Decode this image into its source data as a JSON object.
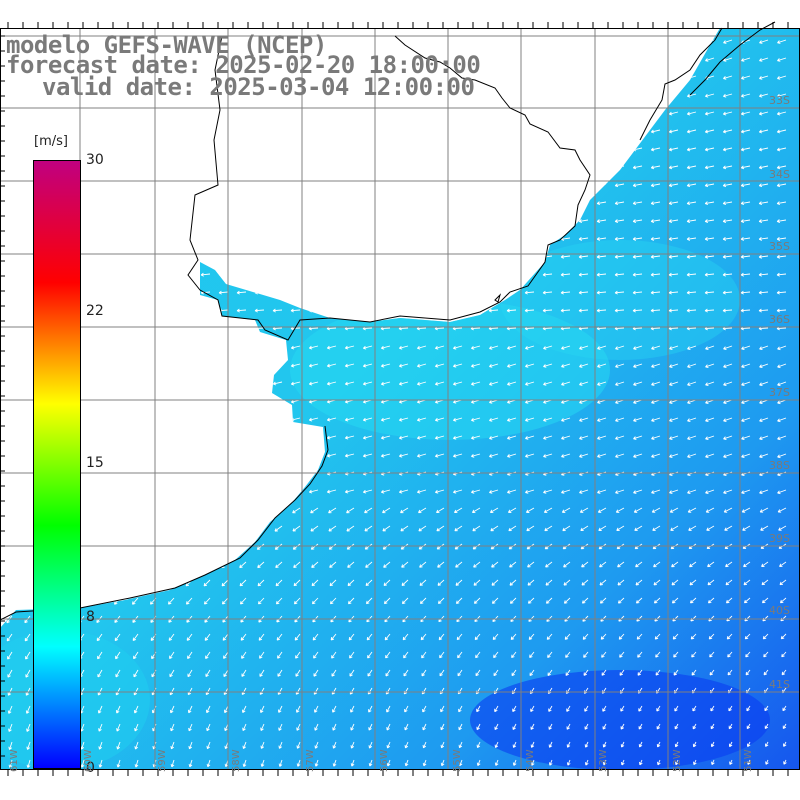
{
  "title": {
    "line1": "modelo GEFS-WAVE (NCEP)",
    "line2": "forecast date: 2025-02-20 18:00:00",
    "line3": "valid date: 2025-03-04 12:00:00"
  },
  "colorbar": {
    "unit": "[m/s]",
    "ticks": [
      "30",
      "22",
      "15",
      "8",
      "0"
    ],
    "colors": [
      "#0000ff",
      "#00ffff",
      "#00ff00",
      "#ffff00",
      "#ff0000",
      "#c00080"
    ]
  },
  "lat_labels": [
    "33S",
    "34S",
    "35S",
    "36S",
    "37S",
    "38S",
    "39S",
    "40S",
    "41S"
  ],
  "lon_labels": [
    "61W",
    "60W",
    "59W",
    "58W",
    "57W",
    "56W",
    "55W",
    "54W",
    "53W",
    "52W",
    "51W"
  ],
  "colors": {
    "land": "#ffffff",
    "grid": "#808080",
    "coast": "#000000",
    "arrow": "#ffffff"
  }
}
